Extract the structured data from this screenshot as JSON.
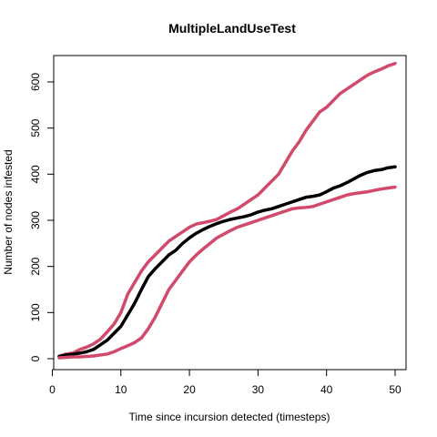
{
  "chart_data": {
    "type": "line",
    "title": "MultipleLandUseTest",
    "xlabel": "Time since incursion detected (timesteps)",
    "ylabel": "Number of nodes infested",
    "xlim": [
      0,
      50
    ],
    "ylim": [
      0,
      650
    ],
    "x_ticks": [
      0,
      10,
      20,
      30,
      40,
      50
    ],
    "y_ticks": [
      0,
      100,
      200,
      300,
      400,
      500,
      600
    ],
    "grid": false,
    "colors": {
      "median": "#000000",
      "bounds": "#d1496b"
    },
    "x": [
      1,
      2,
      3,
      4,
      5,
      6,
      7,
      8,
      9,
      10,
      11,
      12,
      13,
      14,
      15,
      16,
      17,
      18,
      19,
      20,
      21,
      22,
      23,
      24,
      25,
      26,
      27,
      28,
      29,
      30,
      31,
      32,
      33,
      34,
      35,
      36,
      37,
      38,
      39,
      40,
      41,
      42,
      43,
      44,
      45,
      46,
      47,
      48,
      49,
      50
    ],
    "series": [
      {
        "role": "upper",
        "values": [
          5,
          10,
          12,
          20,
          25,
          32,
          42,
          58,
          75,
          100,
          140,
          165,
          190,
          210,
          225,
          240,
          255,
          265,
          275,
          285,
          292,
          295,
          298,
          302,
          310,
          318,
          325,
          335,
          345,
          355,
          370,
          385,
          400,
          425,
          450,
          470,
          495,
          515,
          535,
          545,
          560,
          575,
          585,
          595,
          605,
          615,
          622,
          628,
          635,
          640
        ]
      },
      {
        "role": "median",
        "values": [
          5,
          8,
          10,
          12,
          15,
          20,
          30,
          40,
          55,
          70,
          95,
          120,
          150,
          178,
          195,
          210,
          225,
          235,
          250,
          262,
          272,
          280,
          287,
          293,
          298,
          302,
          305,
          308,
          312,
          318,
          322,
          325,
          330,
          335,
          340,
          345,
          350,
          352,
          355,
          362,
          370,
          375,
          382,
          390,
          398,
          404,
          408,
          410,
          414,
          416
        ]
      },
      {
        "role": "lower",
        "values": [
          2,
          3,
          4,
          4,
          5,
          6,
          8,
          10,
          15,
          22,
          28,
          35,
          45,
          65,
          90,
          120,
          150,
          170,
          190,
          210,
          225,
          238,
          250,
          262,
          270,
          278,
          285,
          290,
          295,
          300,
          305,
          310,
          315,
          320,
          325,
          327,
          328,
          330,
          335,
          340,
          345,
          350,
          355,
          358,
          360,
          362,
          365,
          368,
          370,
          372
        ]
      }
    ]
  }
}
